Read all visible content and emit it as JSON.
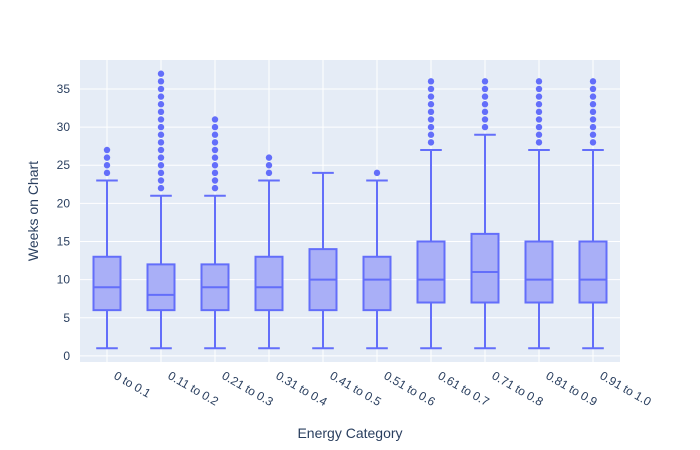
{
  "chart_data": {
    "type": "box",
    "title": "",
    "xlabel": "Energy Category",
    "ylabel": "Weeks on Chart",
    "ylim": [
      -0.8,
      38.8
    ],
    "yticks": [
      0,
      5,
      10,
      15,
      20,
      25,
      30,
      35
    ],
    "grid": true,
    "legend": "none",
    "colors": {
      "plot_bg": "#e5ecf6",
      "grid": "#ffffff",
      "box_line": "#636efa",
      "box_fill": "#a9aff7",
      "text": "#2a3f5f"
    },
    "categories": [
      "0 to 0.1",
      "0.11 to 0.2",
      "0.21 to 0.3",
      "0.31 to 0.4",
      "0.41 to 0.5",
      "0.51 to 0.6",
      "0.61 to 0.7",
      "0.71 to 0.8",
      "0.81 to 0.9",
      "0.91 to 1.0"
    ],
    "boxes": [
      {
        "min": 1,
        "q1": 6,
        "median": 9,
        "q3": 13,
        "max": 23,
        "outliers": [
          24,
          25,
          26,
          27
        ]
      },
      {
        "min": 1,
        "q1": 6,
        "median": 8,
        "q3": 12,
        "max": 21,
        "outliers": [
          22,
          23,
          24,
          25,
          26,
          27,
          28,
          29,
          30,
          31,
          32,
          33,
          34,
          35,
          36,
          37
        ]
      },
      {
        "min": 1,
        "q1": 6,
        "median": 9,
        "q3": 12,
        "max": 21,
        "outliers": [
          22,
          23,
          24,
          25,
          26,
          27,
          28,
          29,
          30,
          31
        ]
      },
      {
        "min": 1,
        "q1": 6,
        "median": 9,
        "q3": 13,
        "max": 23,
        "outliers": [
          24,
          25,
          26
        ]
      },
      {
        "min": 1,
        "q1": 6,
        "median": 10,
        "q3": 14,
        "max": 24,
        "outliers": []
      },
      {
        "min": 1,
        "q1": 6,
        "median": 10,
        "q3": 13,
        "max": 23,
        "outliers": [
          24
        ]
      },
      {
        "min": 1,
        "q1": 7,
        "median": 10,
        "q3": 15,
        "max": 27,
        "outliers": [
          28,
          29,
          30,
          31,
          32,
          33,
          34,
          35,
          36
        ]
      },
      {
        "min": 1,
        "q1": 7,
        "median": 11,
        "q3": 16,
        "max": 29,
        "outliers": [
          30,
          31,
          32,
          33,
          34,
          35,
          36
        ]
      },
      {
        "min": 1,
        "q1": 7,
        "median": 10,
        "q3": 15,
        "max": 27,
        "outliers": [
          28,
          29,
          30,
          31,
          32,
          33,
          34,
          35,
          36
        ]
      },
      {
        "min": 1,
        "q1": 7,
        "median": 10,
        "q3": 15,
        "max": 27,
        "outliers": [
          28,
          29,
          30,
          31,
          32,
          33,
          34,
          35,
          36
        ]
      }
    ]
  }
}
